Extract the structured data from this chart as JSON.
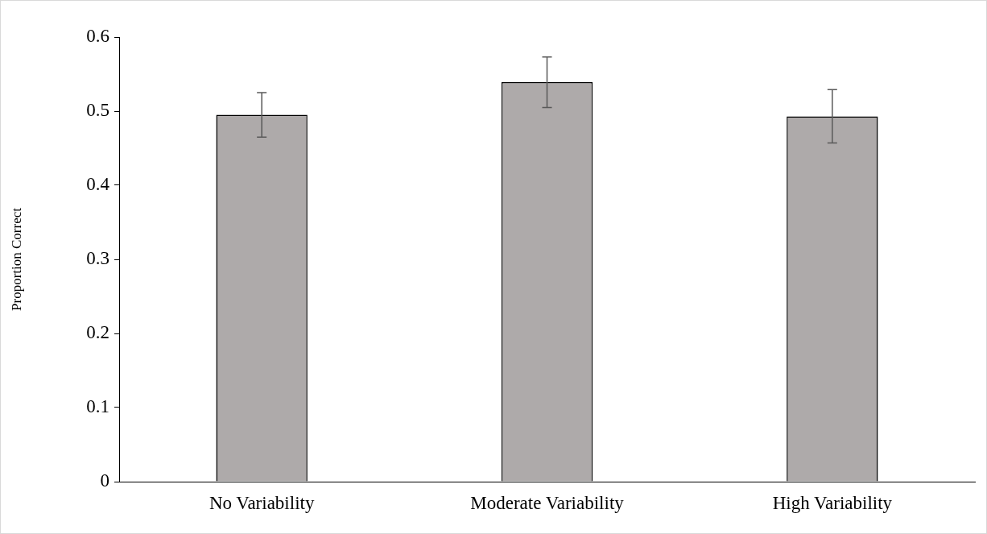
{
  "chart_data": {
    "type": "bar",
    "ylabel": "Proportion Correct",
    "categories": [
      "No Variability",
      "Moderate Variability",
      "High Variability"
    ],
    "values": [
      0.495,
      0.539,
      0.493
    ],
    "errors": [
      0.03,
      0.034,
      0.036
    ],
    "color": "#aeaaaa",
    "ylim": [
      0,
      0.6
    ],
    "yticks": [
      0,
      0.1,
      0.2,
      0.3,
      0.4,
      0.5,
      0.6
    ],
    "grid": false
  }
}
